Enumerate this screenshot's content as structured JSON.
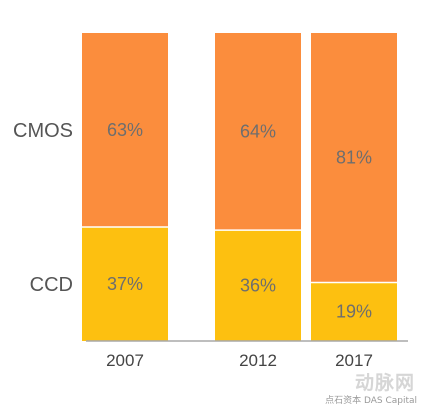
{
  "chart_data": {
    "type": "bar",
    "stacked": true,
    "percent": true,
    "categories": [
      "2007",
      "2012",
      "2017"
    ],
    "series": [
      {
        "name": "CCD",
        "values": [
          37,
          36,
          19
        ],
        "labels": [
          "37%",
          "36%",
          "19%"
        ],
        "color": "#fdc010"
      },
      {
        "name": "CMOS",
        "values": [
          63,
          64,
          81
        ],
        "labels": [
          "63%",
          "64%",
          "81%"
        ],
        "color": "#fb8d3d"
      }
    ],
    "ylim": [
      0,
      100
    ],
    "grid": false,
    "legend": "row labels on the left side"
  },
  "watermark": {
    "logo": "动脉网",
    "text": "点石资本 DAS Capital"
  }
}
